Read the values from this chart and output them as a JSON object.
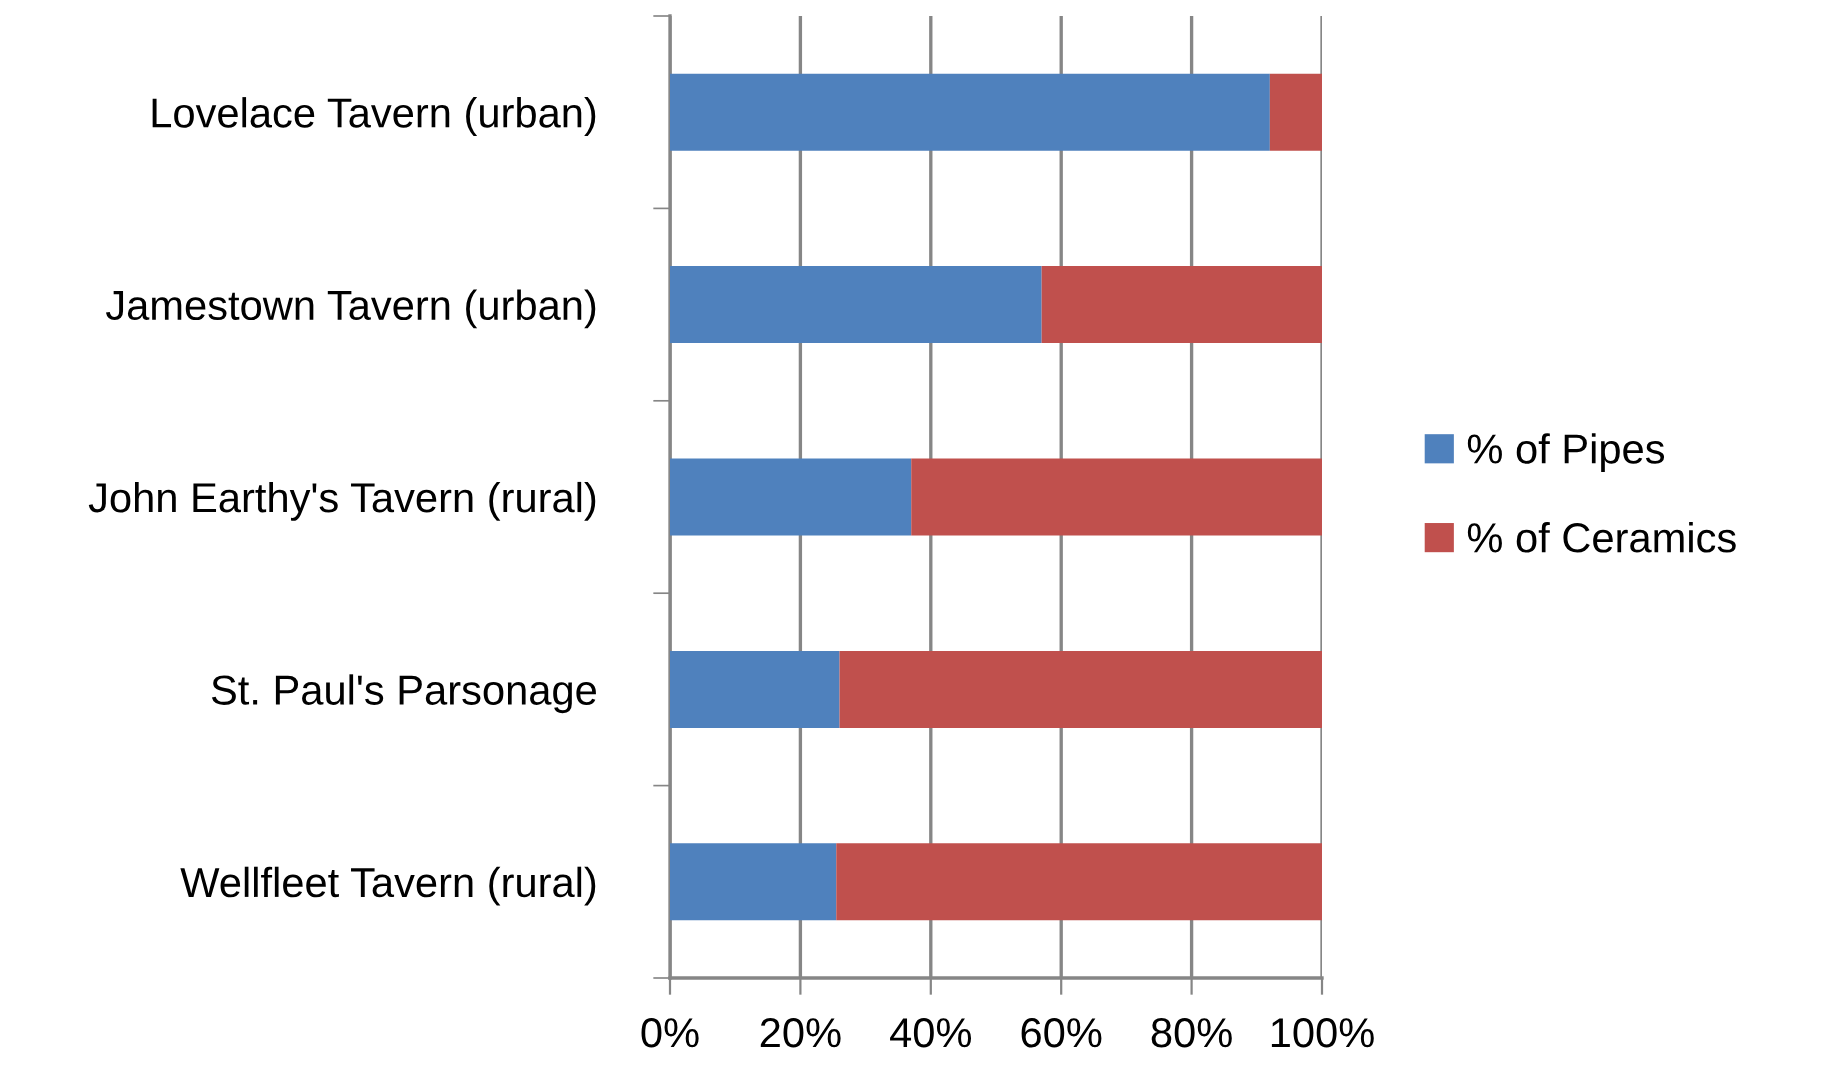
{
  "chart_data": {
    "type": "bar",
    "orientation": "horizontal",
    "stacked": true,
    "categories": [
      "Lovelace Tavern (urban)",
      "Jamestown Tavern (urban)",
      "John Earthy's Tavern (rural)",
      "St. Paul's Parsonage",
      "Wellfleet Tavern (rural)"
    ],
    "series": [
      {
        "name": "% of Pipes",
        "color": "#4f81bd",
        "values": [
          92,
          57,
          37,
          26,
          25.5
        ]
      },
      {
        "name": "% of Ceramics",
        "color": "#c0504d",
        "values": [
          8,
          43,
          63,
          74,
          74.5
        ]
      }
    ],
    "xlim": [
      0,
      100
    ],
    "xticks": [
      {
        "value": 0,
        "label": "0%"
      },
      {
        "value": 20,
        "label": "20%"
      },
      {
        "value": 40,
        "label": "40%"
      },
      {
        "value": 60,
        "label": "60%"
      },
      {
        "value": 80,
        "label": "80%"
      },
      {
        "value": 100,
        "label": "100%"
      }
    ],
    "grid": "x",
    "legend": "right"
  }
}
